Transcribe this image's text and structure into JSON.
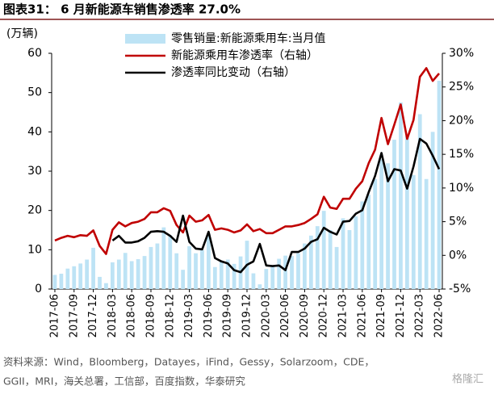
{
  "chart_data": {
    "type": "bar-line",
    "title": "图表31： 6 月新能源车销售渗透率 27.0%",
    "y_unit": "(万辆)",
    "source": "资料来源：Wind，Bloomberg，Datayes，iFind，Gessy，Solarzoom，CDE，",
    "source2": "GGII，MRI，海关总署，工信部，百度指数，华泰研究",
    "watermark": "格隆汇",
    "categories": [
      "2017-06",
      null,
      null,
      "2017-09",
      null,
      null,
      "2017-12",
      null,
      null,
      "2018-03",
      null,
      null,
      "2018-06",
      null,
      null,
      "2018-09",
      null,
      null,
      "2018-12",
      null,
      null,
      "2019-03",
      null,
      null,
      "2019-06",
      null,
      null,
      "2019-09",
      null,
      null,
      "2019-12",
      null,
      null,
      "2020-03",
      null,
      null,
      "2020-06",
      null,
      null,
      "2020-09",
      null,
      null,
      "2020-12",
      null,
      null,
      "2021-03",
      null,
      null,
      "2021-06",
      null,
      null,
      "2021-09",
      null,
      null,
      "2021-12",
      null,
      null,
      "2022-03",
      null,
      null,
      "2022-06"
    ],
    "series": [
      {
        "name": "零售销量:新能源乘用车:当月值",
        "color": "#bde3f5",
        "kind": "bar",
        "axis": "y",
        "values": [
          3.6,
          3.9,
          5.2,
          5.8,
          6.5,
          7.5,
          10.5,
          3.1,
          1.5,
          6.8,
          7.5,
          9.2,
          7.1,
          7.6,
          8.4,
          10.7,
          11.6,
          15.7,
          13.7,
          9.1,
          4.9,
          10.9,
          9.1,
          9.9,
          14,
          5.6,
          7.2,
          7.5,
          6.4,
          8.3,
          12.3,
          4,
          1.2,
          5.1,
          5.7,
          7.7,
          8.5,
          8.4,
          9.1,
          11.6,
          13.6,
          16,
          19.9,
          15,
          10.7,
          18,
          15,
          18.5,
          22.3,
          24,
          28,
          33,
          32,
          38,
          47.5,
          39,
          29,
          44.5,
          28,
          40,
          53
        ]
      },
      {
        "name": "新能源乘用车渗透率（右轴）",
        "color": "#c00000",
        "kind": "line",
        "axis": "y2",
        "values": [
          2.2,
          2.6,
          2.9,
          2.7,
          3.0,
          2.9,
          3.7,
          1.4,
          0.2,
          3.8,
          4.9,
          4.3,
          4.8,
          5.0,
          5.4,
          6.4,
          6.4,
          7.0,
          6.6,
          4.5,
          3.4,
          5.9,
          5.0,
          5.2,
          6.0,
          3.8,
          4.0,
          3.8,
          3.4,
          3.7,
          4.6,
          3.6,
          3.9,
          3.3,
          3.3,
          3.8,
          4.3,
          4.3,
          4.5,
          4.8,
          5.4,
          6.1,
          8.7,
          7.1,
          6.9,
          8.4,
          8.4,
          9.9,
          11.0,
          13.7,
          15.7,
          20.4,
          16.5,
          19.4,
          22.4,
          17.3,
          20.1,
          26.5,
          27.8,
          25.9,
          27.0
        ]
      },
      {
        "name": "渗透率同比变动（右轴）",
        "color": "#000000",
        "kind": "line",
        "axis": "y2",
        "values": [
          null,
          null,
          null,
          null,
          null,
          null,
          null,
          null,
          null,
          2.2,
          2.9,
          1.9,
          1.9,
          2.1,
          2.6,
          3.5,
          3.6,
          3.5,
          2.9,
          2.0,
          5.9,
          2.0,
          1.0,
          0.9,
          3.5,
          -0.4,
          -0.9,
          -1.2,
          -2.2,
          -2.5,
          -1.4,
          -0.9,
          1.7,
          -1.5,
          -1.6,
          -1.5,
          -2.2,
          0.5,
          0.5,
          1.0,
          2.0,
          2.4,
          4.1,
          3.5,
          3.1,
          5.0,
          5.1,
          6.2,
          6.7,
          9.4,
          11.8,
          15.2,
          11.0,
          12.8,
          12.6,
          9.9,
          13.2,
          17.3,
          16.6,
          14.8,
          12.8
        ]
      }
    ],
    "ylim": [
      0,
      60
    ],
    "yticks": [
      0,
      10,
      20,
      30,
      40,
      50,
      60
    ],
    "y2lim": [
      -5,
      30
    ],
    "y2ticks": [
      {
        "value": -5,
        "label": "-5%"
      },
      {
        "value": 0,
        "label": "0%"
      },
      {
        "value": 5,
        "label": "5%"
      },
      {
        "value": 10,
        "label": "10%"
      },
      {
        "value": 15,
        "label": "15%"
      },
      {
        "value": 20,
        "label": "20%"
      },
      {
        "value": 25,
        "label": "25%"
      },
      {
        "value": 30,
        "label": "30%"
      }
    ]
  }
}
